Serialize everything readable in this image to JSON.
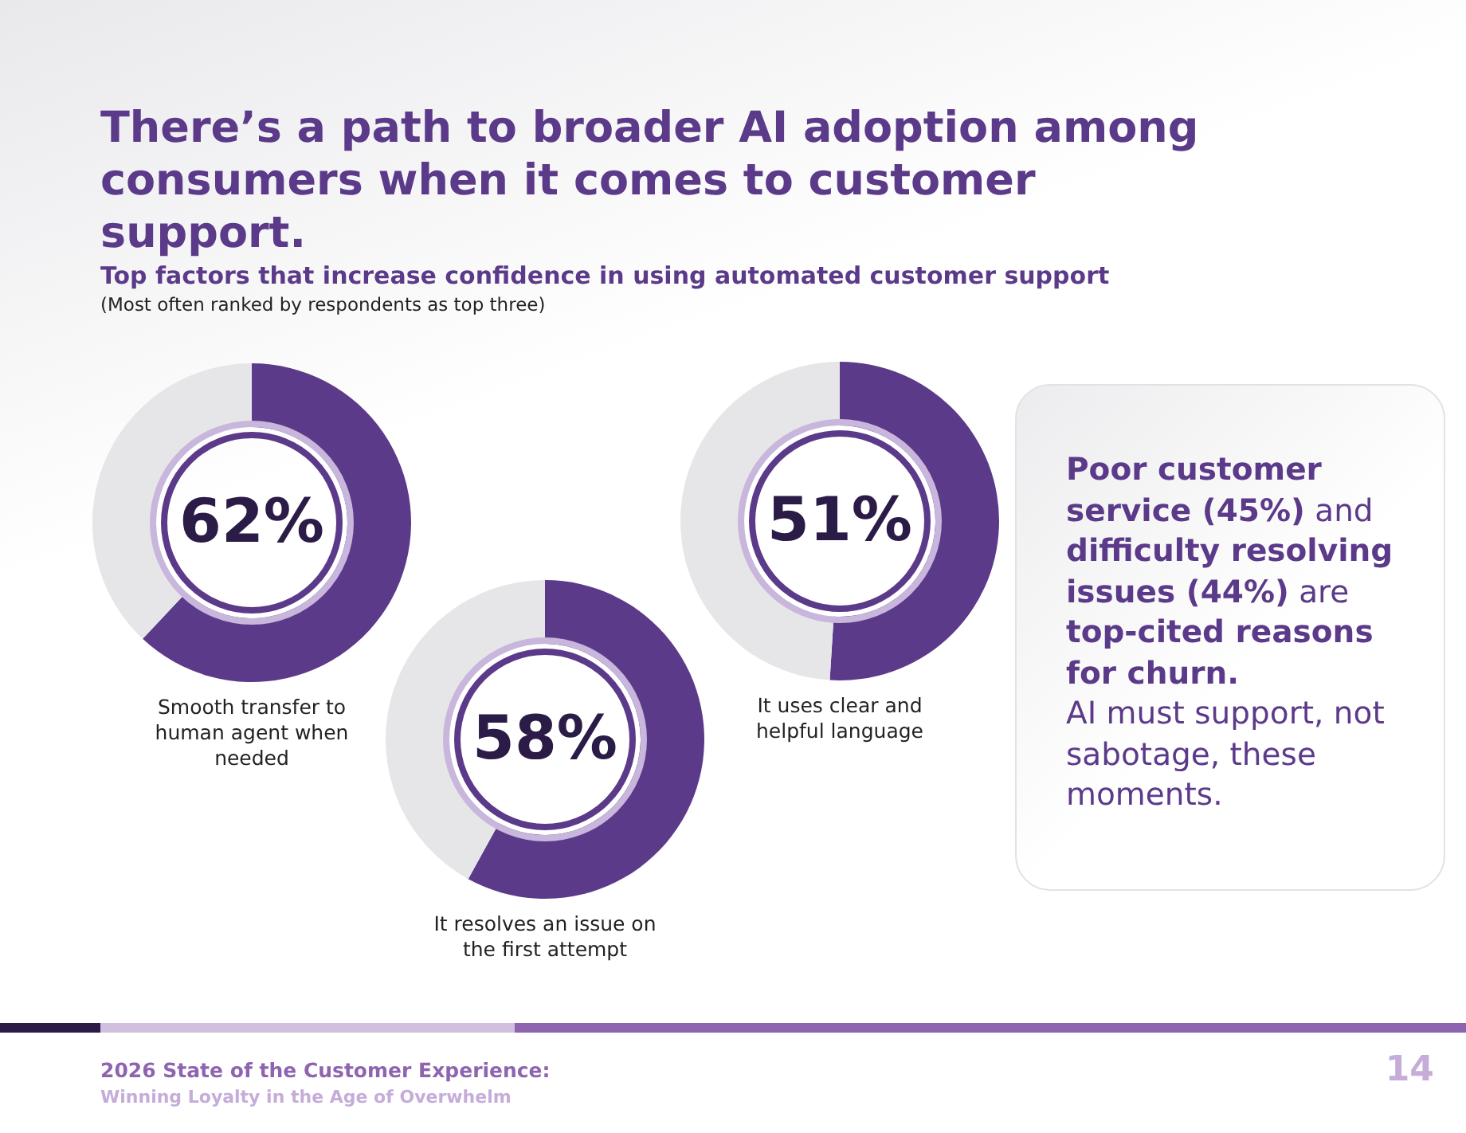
{
  "chart_data": [
    {
      "type": "donut",
      "title": "There’s a path to broader AI adoption among consumers when it comes to customer support.",
      "subtitle": "Top factors that increase confidence in using automated customer support",
      "annotations": [
        "(Most often ranked by respondents as top three)",
        "2026 State of the Customer Experience:",
        "Winning Loyalty in the Age of Overwhelm",
        "14"
      ],
      "xlabel": "Smooth transfer to human agent when needed",
      "categories": [
        null,
        null
      ],
      "values": [
        62,
        38
      ],
      "colors": [
        "#5c3a8a",
        "#e6e6e9"
      ],
      "value_labels": [
        "62%",
        null
      ]
    },
    {
      "type": "donut",
      "xlabel": "It resolves an issue on the first attempt",
      "categories": [
        null,
        null
      ],
      "values": [
        58,
        42
      ],
      "colors": [
        "#5c3a8a",
        "#e6e6e9"
      ],
      "value_labels": [
        "58%",
        null
      ]
    },
    {
      "type": "donut",
      "xlabel": "It uses clear and helpful language",
      "categories": [
        null,
        null
      ],
      "values": [
        51,
        49
      ],
      "colors": [
        "#5c3a8a",
        "#e6e6e9"
      ],
      "value_labels": [
        "51%",
        null
      ]
    },
    {
      "type": "other",
      "annotations": [
        "Poor customer service (45%)",
        "and",
        "difficulty resolving issues (44%)",
        "are",
        "top-cited reasons for churn.",
        "AI must support, not sabotage, these moments."
      ]
    }
  ]
}
